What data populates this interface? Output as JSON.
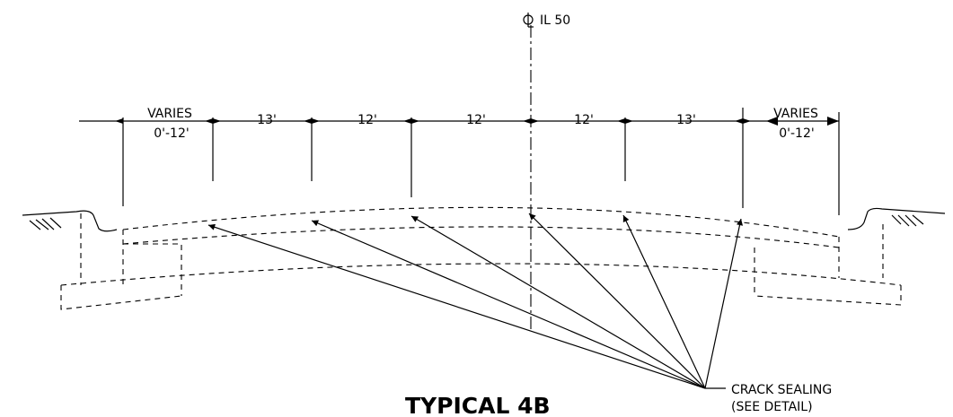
{
  "centerline_label": "IL 50",
  "dimensions": {
    "left_varies": "VARIES",
    "left_range": "0'-12'",
    "lanes": [
      "13'",
      "12'",
      "12'",
      "12'",
      "13'"
    ],
    "right_varies": "VARIES",
    "right_range": "0'-12'"
  },
  "callout": {
    "line1": "CRACK SEALING",
    "line2": "(SEE DETAIL)"
  },
  "title": "TYPICAL 4B"
}
